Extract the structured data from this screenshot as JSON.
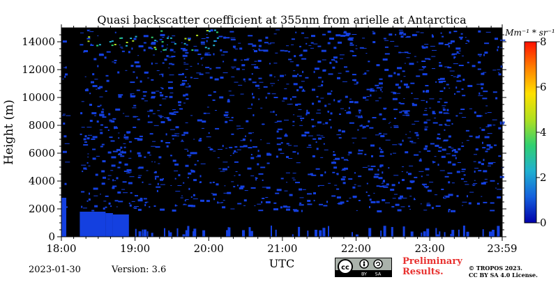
{
  "chart_data": {
    "type": "heatmap",
    "title": "Quasi backscatter coefficient at 355nm from arielle at Antarctica",
    "xlabel": "UTC",
    "ylabel": "Height (m)",
    "x_ticks": [
      "18:00",
      "19:00",
      "20:00",
      "21:00",
      "22:00",
      "23:00",
      "23:59"
    ],
    "y_ticks": [
      "0",
      "2000",
      "4000",
      "6000",
      "8000",
      "10000",
      "12000",
      "14000"
    ],
    "ylim": [
      0,
      15000
    ],
    "colorbar": {
      "unit_label": "Mm⁻¹ * sr⁻¹",
      "ticks": [
        "0",
        "2",
        "4",
        "6",
        "8"
      ],
      "range": [
        0,
        8
      ],
      "colormap": [
        "#0000aa",
        "#1560dd",
        "#20b0d0",
        "#30d070",
        "#b0e020",
        "#ffe000",
        "#ff8000",
        "#ff1000"
      ]
    },
    "background_color": "#000000",
    "dominant_signal_color": "#1440e0",
    "features": [
      {
        "time_start": "18:00",
        "time_end": "18:04",
        "height_top": 2800
      },
      {
        "time_start": "18:15",
        "time_end": "18:36",
        "height_top": 1800
      },
      {
        "time_start": "18:36",
        "time_end": "18:42",
        "height_top": 1700
      },
      {
        "time_start": "18:42",
        "time_end": "18:55",
        "height_top": 1600
      }
    ]
  },
  "footer": {
    "date": "2023-01-30",
    "version": "Version: 3.6",
    "license_badge": {
      "top": "cc",
      "by": "BY",
      "sa": "SA"
    },
    "preliminary": [
      "Preliminary",
      "Results."
    ],
    "copyright": [
      "© TROPOS 2023.",
      "CC BY SA 4.0 License."
    ]
  }
}
